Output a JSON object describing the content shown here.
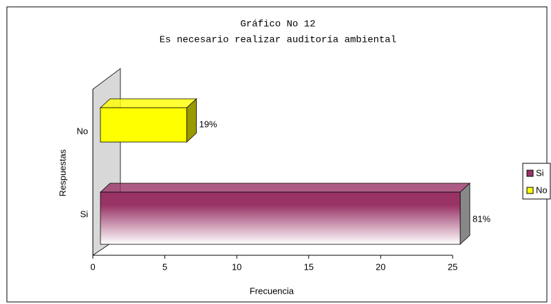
{
  "chart_data": {
    "type": "bar3d_horizontal",
    "title": "Gráfico No 12",
    "subtitle": "Es necesario realizar auditoría ambiental",
    "categories": [
      "Si",
      "No"
    ],
    "values": [
      25,
      6
    ],
    "colors": [
      "#993366",
      "#ffff00"
    ],
    "data_labels": {
      "values": [
        81,
        19
      ],
      "value_labels": [
        "81%",
        "19%"
      ]
    },
    "xlabel": "Frecuencia",
    "ylabel": "Respuestas",
    "xlim": [
      0,
      25
    ],
    "xticks": [
      0,
      5,
      10,
      15,
      20,
      25
    ],
    "grid": false,
    "legend": "right"
  }
}
